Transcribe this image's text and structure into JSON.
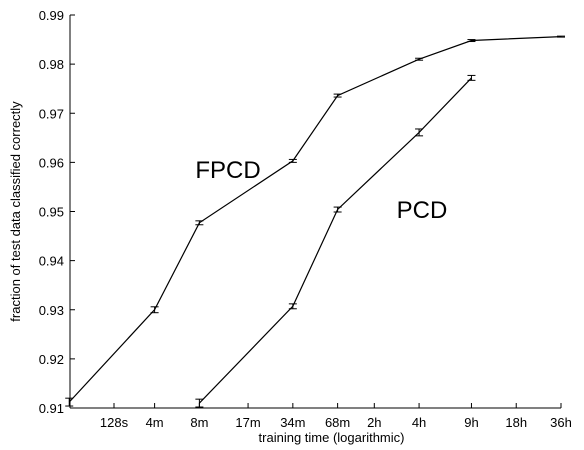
{
  "chart_data": {
    "type": "line",
    "title": "",
    "xlabel": "training time (logarithmic)",
    "ylabel": "fraction of test data classified correctly",
    "x_scale": "log",
    "x_ticks": [
      "128s",
      "4m",
      "8m",
      "17m",
      "34m",
      "68m",
      "2h",
      "4h",
      "9h",
      "18h",
      "36h"
    ],
    "ylim": [
      0.91,
      0.99
    ],
    "y_ticks": [
      "0.91",
      "0.92",
      "0.93",
      "0.94",
      "0.95",
      "0.96",
      "0.97",
      "0.98",
      "0.99"
    ],
    "grid": false,
    "legend": "none",
    "series": [
      {
        "name": "FPCD",
        "x": [
          "64s",
          "4m",
          "8m",
          "34m",
          "68m",
          "4h",
          "9h",
          "36h"
        ],
        "y": [
          0.9112,
          0.93,
          0.9477,
          0.9603,
          0.9736,
          0.981,
          0.9848,
          0.9856
        ],
        "error": [
          0.0008,
          0.0006,
          0.0004,
          0.0003,
          0.0003,
          0.0002,
          0.0002,
          0.0001
        ]
      },
      {
        "name": "PCD",
        "x": [
          "8m",
          "34m",
          "68m",
          "4h",
          "9h"
        ],
        "y": [
          0.911,
          0.9307,
          0.9504,
          0.9661,
          0.9772
        ],
        "error": [
          0.0008,
          0.0005,
          0.0005,
          0.0007,
          0.0005
        ]
      }
    ],
    "colors": {
      "line": "#000000",
      "axis": "#000000"
    }
  }
}
